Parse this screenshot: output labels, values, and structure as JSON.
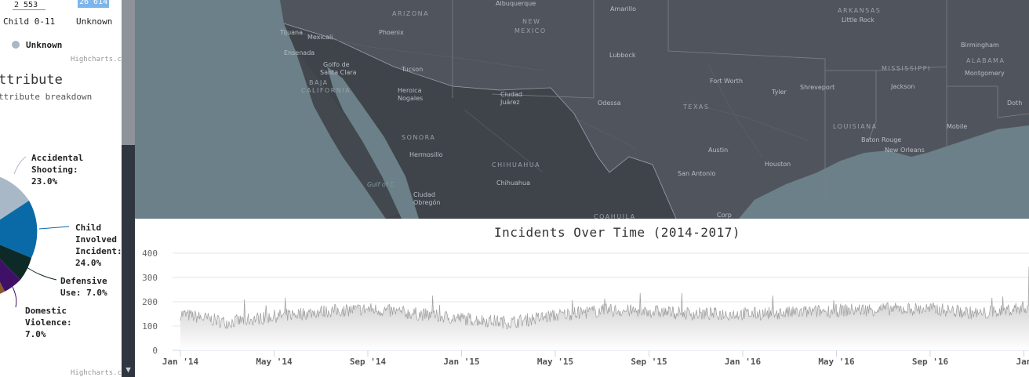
{
  "left_panel": {
    "table_values": [
      "2 553",
      "26 614"
    ],
    "table_headers": [
      "Child 0-11",
      "Unknown"
    ],
    "legend_unknown": "Unknown",
    "credit_top": "Highcharts.com",
    "section_title": "ttribute",
    "section_subtitle": "ttribute breakdown",
    "pie_labels": {
      "accidental": [
        "Accidental",
        "Shooting:",
        "23.0%"
      ],
      "child": [
        "Child",
        "Involved",
        "Incident:",
        "24.0%"
      ],
      "defensive": [
        "Defensive",
        "Use: 7.0%"
      ],
      "domestic": [
        "Domestic",
        "Violence:",
        "7.0%"
      ]
    },
    "credit_bottom": "Highcharts.com",
    "colors": {
      "accidental": "#a9b8c6",
      "child": "#0a6aa8",
      "defensive": "#0e2a26",
      "domestic": "#3e1166",
      "other": "#8a5a2a",
      "legend_dot": "#a9b8c6"
    }
  },
  "map": {
    "labels": [
      "Albuquerque",
      "Amarillo",
      "ARIZONA",
      "NEW MEXICO",
      "Phoenix",
      "Lubbock",
      "Tijuana",
      "Mexicali",
      "Ensenada",
      "Golfo de Santa Clara",
      "Tucson",
      "BAJA CALIFORNIA",
      "Heroica Nogales",
      "Ciudad Juárez",
      "Odessa",
      "Fort Worth",
      "TEXAS",
      "Tyler",
      "Shreveport",
      "SONORA",
      "Hermosillo",
      "CHIHUAHUA",
      "Chihuahua",
      "Austin",
      "San Antonio",
      "Houston",
      "LOUISIANA",
      "Baton Rouge",
      "New Orleans",
      "Ciudad Obregón",
      "Corp",
      "ARKANSAS",
      "Little Rock",
      "MISSISSIPPI",
      "Jackson",
      "ALABAMA",
      "Birmingham",
      "Montgomery",
      "Mobile",
      "Doth",
      "COAHUILA",
      "Gulf of C"
    ],
    "colors": {
      "land": "#50555d",
      "mexico": "#3f434a",
      "water": "#6b8088"
    }
  },
  "chart": {
    "title": "Incidents Over Time (2014-2017)",
    "y_ticks": [
      "400",
      "300",
      "200",
      "100",
      "0"
    ],
    "x_ticks": [
      "Jan '14",
      "May '14",
      "Sep '14",
      "Jan '15",
      "May '15",
      "Sep '15",
      "Jan '16",
      "May '16",
      "Sep '16",
      "Jan"
    ]
  },
  "chart_data": {
    "type": "area",
    "title": "Incidents Over Time (2014-2017)",
    "xlabel": "",
    "ylabel": "",
    "ylim": [
      0,
      400
    ],
    "x": [
      "2014-01",
      "2014-03",
      "2014-05",
      "2014-07",
      "2014-09",
      "2014-11",
      "2015-01",
      "2015-03",
      "2015-05",
      "2015-07",
      "2015-09",
      "2015-11",
      "2016-01",
      "2016-03",
      "2016-05",
      "2016-07",
      "2016-09",
      "2016-11",
      "2017-01"
    ],
    "series": [
      {
        "values": [
          150,
          115,
          140,
          160,
          170,
          150,
          130,
          115,
          145,
          165,
          160,
          150,
          150,
          155,
          165,
          170,
          170,
          150,
          180
        ]
      }
    ],
    "grid": true,
    "colors": {
      "fill": "#b3b3b3",
      "line": "#9e9e9e"
    }
  }
}
